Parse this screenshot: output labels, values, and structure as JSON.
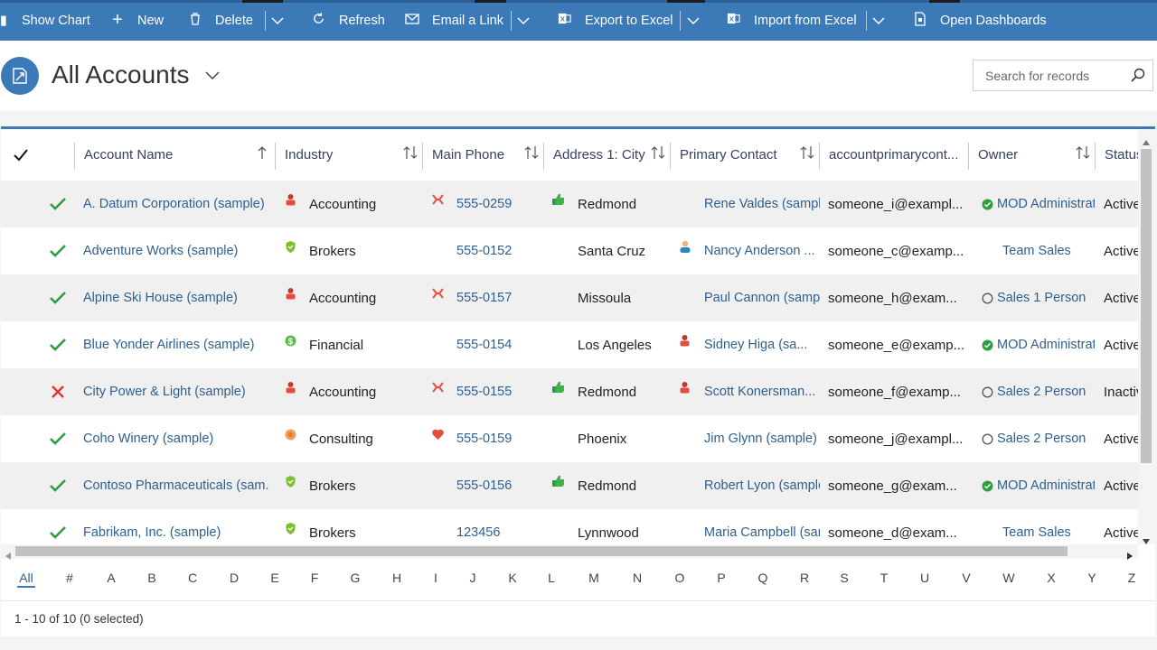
{
  "commandbar": {
    "show_chart": "Show Chart",
    "new": "New",
    "delete": "Delete",
    "refresh": "Refresh",
    "email_link": "Email a Link",
    "export_excel": "Export to Excel",
    "import_excel": "Import from Excel",
    "open_dashboards": "Open Dashboards"
  },
  "header": {
    "title": "All Accounts",
    "search_placeholder": "Search for records"
  },
  "columns": {
    "account_name": "Account Name",
    "industry": "Industry",
    "main_phone": "Main Phone",
    "city": "Address 1: City",
    "primary_contact": "Primary Contact",
    "contact_email": "accountprimarycont...",
    "owner": "Owner",
    "status": "Status"
  },
  "rows": [
    {
      "name": "A. Datum Corporation (sample)",
      "industry": "Accounting",
      "phone": "555-0259",
      "city": "Redmond",
      "contact": "Rene Valdes (sample",
      "email": "someone_i@exampl...",
      "owner": "MOD Administrat",
      "status": "Active"
    },
    {
      "name": "Adventure Works (sample)",
      "industry": "Brokers",
      "phone": "555-0152",
      "city": "Santa Cruz",
      "contact": "Nancy Anderson ...",
      "email": "someone_c@examp...",
      "owner": "Team Sales",
      "status": "Active"
    },
    {
      "name": "Alpine Ski House (sample)",
      "industry": "Accounting",
      "phone": "555-0157",
      "city": "Missoula",
      "contact": "Paul Cannon (sample",
      "email": "someone_h@exam...",
      "owner": "Sales 1 Person",
      "status": "Active"
    },
    {
      "name": "Blue Yonder Airlines (sample)",
      "industry": "Financial",
      "phone": "555-0154",
      "city": "Los Angeles",
      "contact": "Sidney Higa (sa...",
      "email": "someone_e@examp...",
      "owner": "MOD Administrat",
      "status": "Active"
    },
    {
      "name": "City Power & Light (sample)",
      "industry": "Accounting",
      "phone": "555-0155",
      "city": "Redmond",
      "contact": "Scott Konersman...",
      "email": "someone_f@examp...",
      "owner": "Sales 2 Person",
      "status": "Inactiv"
    },
    {
      "name": "Coho Winery (sample)",
      "industry": "Consulting",
      "phone": "555-0159",
      "city": "Phoenix",
      "contact": "Jim Glynn (sample)",
      "email": "someone_j@exampl...",
      "owner": "Sales 2 Person",
      "status": "Active"
    },
    {
      "name": "Contoso Pharmaceuticals (sam...",
      "industry": "Brokers",
      "phone": "555-0156",
      "city": "Redmond",
      "contact": "Robert Lyon (sample",
      "email": "someone_g@exam...",
      "owner": "MOD Administrat",
      "status": "Active"
    },
    {
      "name": "Fabrikam, Inc. (sample)",
      "industry": "Brokers",
      "phone": "123456",
      "city": "Lynnwood",
      "contact": "Maria Campbell (sam",
      "email": "someone_d@exam...",
      "owner": "Team Sales",
      "status": "Active"
    }
  ],
  "jumpbar": [
    "All",
    "#",
    "A",
    "B",
    "C",
    "D",
    "E",
    "F",
    "G",
    "H",
    "I",
    "J",
    "K",
    "L",
    "M",
    "N",
    "O",
    "P",
    "Q",
    "R",
    "S",
    "T",
    "U",
    "V",
    "W",
    "X",
    "Y",
    "Z"
  ],
  "footer": {
    "status": "1 - 10 of 10 (0 selected)"
  },
  "colors": {
    "accent": "#3b79b7",
    "link": "#2e5f8f",
    "check_green": "#2e9e3f",
    "cross_red": "#e0352b"
  }
}
